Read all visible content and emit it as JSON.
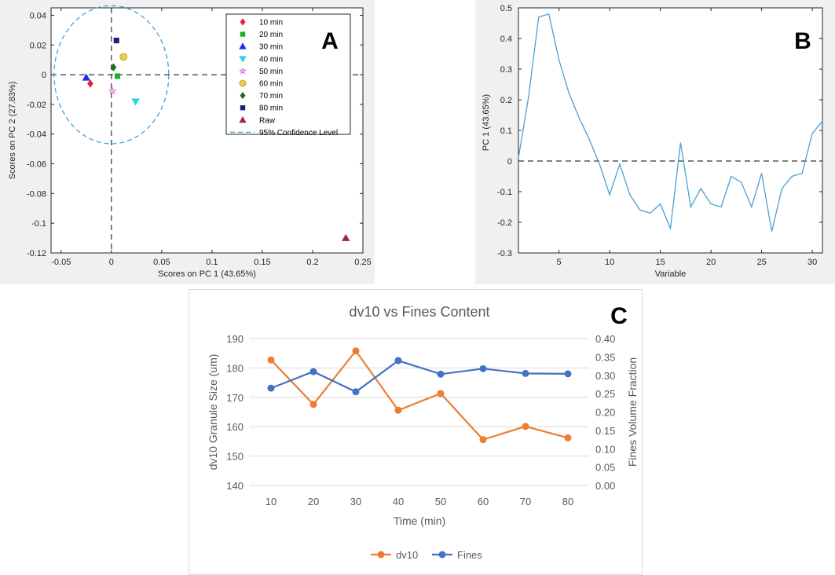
{
  "panels": {
    "a": {
      "letter": "A"
    },
    "b": {
      "letter": "B"
    },
    "c": {
      "letter": "C"
    }
  },
  "chart_data": [
    {
      "type": "scatter",
      "panel": "A",
      "xlabel": "Scores on PC 1 (43.65%)",
      "ylabel": "Scores on PC 2 (27.83%)",
      "xlim": [
        -0.06,
        0.25
      ],
      "ylim": [
        -0.12,
        0.045
      ],
      "xticks": [
        -0.05,
        0,
        0.05,
        0.1,
        0.15,
        0.2,
        0.25
      ],
      "xtick_labels": [
        "-0.05",
        "0",
        "0.05",
        "0.1",
        "0.15",
        "0.2",
        "0.25"
      ],
      "yticks": [
        0.04,
        0.02,
        0,
        -0.02,
        -0.04,
        -0.06,
        -0.08,
        -0.1,
        -0.12
      ],
      "ytick_labels": [
        "0.04",
        "0.02",
        "0",
        "-0.02",
        "-0.04",
        "-0.06",
        "-0.08",
        "-0.1",
        "-0.12"
      ],
      "legend_position": "top-right",
      "series": [
        {
          "name": "10 min",
          "marker": "diamond",
          "color": "#e8232a",
          "x": [
            -0.021
          ],
          "y": [
            -0.006
          ]
        },
        {
          "name": "20 min",
          "marker": "square",
          "color": "#22b022",
          "x": [
            0.006
          ],
          "y": [
            -0.001
          ]
        },
        {
          "name": "30 min",
          "marker": "triangle-up",
          "color": "#1c2de0",
          "x": [
            -0.025
          ],
          "y": [
            -0.002
          ]
        },
        {
          "name": "40 min",
          "marker": "triangle-down",
          "color": "#22d6e6",
          "x": [
            0.024
          ],
          "y": [
            -0.018
          ]
        },
        {
          "name": "50 min",
          "marker": "star",
          "color": "#d76bd6",
          "x": [
            0.001
          ],
          "y": [
            -0.011
          ]
        },
        {
          "name": "60 min",
          "marker": "circle",
          "color": "#e8cf4a",
          "x": [
            0.012
          ],
          "y": [
            0.012
          ]
        },
        {
          "name": "70 min",
          "marker": "diamond",
          "color": "#1f6d1f",
          "x": [
            0.002
          ],
          "y": [
            0.005
          ]
        },
        {
          "name": "80 min",
          "marker": "square",
          "color": "#1d1f7a",
          "x": [
            0.005
          ],
          "y": [
            0.023
          ]
        },
        {
          "name": "Raw",
          "marker": "triangle-up",
          "color": "#a3254b",
          "x": [
            0.233
          ],
          "y": [
            -0.11
          ]
        }
      ],
      "confidence_ellipse": {
        "name": "95% Confidence Level",
        "color": "#4a9fd6",
        "cx": 0,
        "cy": 0,
        "rx": 0.057,
        "ry": 0.0465
      }
    },
    {
      "type": "line",
      "panel": "B",
      "xlabel": "Variable",
      "ylabel": "PC 1 (43.65%)",
      "xlim": [
        1,
        31
      ],
      "ylim": [
        -0.3,
        0.5
      ],
      "xticks": [
        5,
        10,
        15,
        20,
        25,
        30
      ],
      "xtick_labels": [
        "5",
        "10",
        "15",
        "20",
        "25",
        "30"
      ],
      "yticks": [
        0.5,
        0.4,
        0.3,
        0.2,
        0.1,
        0,
        -0.1,
        -0.2,
        -0.3
      ],
      "ytick_labels": [
        "0.5",
        "0.4",
        "0.3",
        "0.2",
        "0.1",
        "0",
        "-0.1",
        "-0.2",
        "-0.3"
      ],
      "x": [
        1,
        2,
        3,
        4,
        5,
        6,
        7,
        8,
        9,
        10,
        11,
        12,
        13,
        14,
        15,
        16,
        17,
        18,
        19,
        20,
        21,
        22,
        23,
        24,
        25,
        26,
        27,
        28,
        29,
        30,
        31
      ],
      "values": [
        0.01,
        0.21,
        0.47,
        0.48,
        0.33,
        0.22,
        0.14,
        0.07,
        -0.01,
        -0.11,
        -0.01,
        -0.11,
        -0.16,
        -0.17,
        -0.14,
        -0.22,
        0.06,
        -0.15,
        -0.09,
        -0.14,
        -0.15,
        -0.05,
        -0.07,
        -0.15,
        -0.04,
        -0.23,
        -0.09,
        -0.05,
        -0.04,
        0.09,
        0.13
      ],
      "color": "#4a9fd6"
    },
    {
      "type": "line",
      "panel": "C",
      "title": "dv10 vs Fines Content",
      "xlabel": "Time (min)",
      "ylabel": "dv10 Granule Size (um)",
      "y2label": "Fines Volume Fraction",
      "categories": [
        "10",
        "20",
        "30",
        "40",
        "50",
        "60",
        "70",
        "80"
      ],
      "ylim": [
        140,
        190
      ],
      "yticks": [
        140,
        150,
        160,
        170,
        180,
        190
      ],
      "ytick_labels": [
        "140",
        "150",
        "160",
        "170",
        "180",
        "190"
      ],
      "y2lim": [
        0,
        0.4
      ],
      "y2ticks": [
        0,
        0.05,
        0.1,
        0.15,
        0.2,
        0.25,
        0.3,
        0.35,
        0.4
      ],
      "y2tick_labels": [
        "0.00",
        "0.05",
        "0.10",
        "0.15",
        "0.20",
        "0.25",
        "0.30",
        "0.35",
        "0.40"
      ],
      "legend_position": "bottom",
      "series": [
        {
          "name": "dv10",
          "axis": "left",
          "color": "#ed7d31",
          "values": [
            182.7,
            167.6,
            185.8,
            165.6,
            171.3,
            155.6,
            160.1,
            156.2
          ]
        },
        {
          "name": "Fines",
          "axis": "right",
          "color": "#4472c4",
          "values": [
            0.265,
            0.31,
            0.255,
            0.34,
            0.303,
            0.318,
            0.305,
            0.304
          ]
        }
      ]
    }
  ]
}
